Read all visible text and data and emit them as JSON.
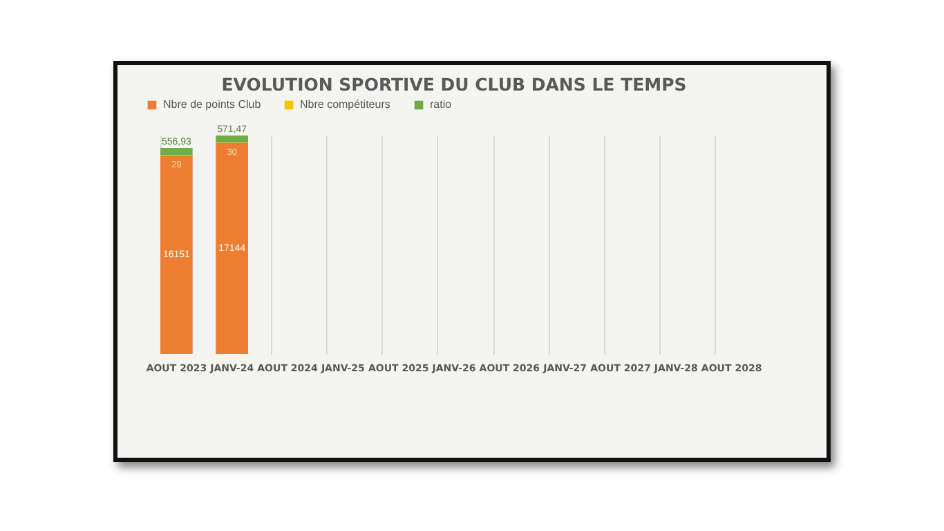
{
  "chart_data": {
    "type": "bar",
    "title": "EVOLUTION SPORTIVE DU CLUB DANS LE TEMPS",
    "categories": [
      "AOUT 2023",
      "JANV-24",
      "AOUT 2024",
      "JANV-25",
      "AOUT 2025",
      "JANV-26",
      "AOUT 2026",
      "JANV-27",
      "AOUT 2027",
      "JANV-28",
      "AOUT 2028"
    ],
    "stacked": true,
    "series": [
      {
        "name": "Nbre de points Club",
        "color": "#ed7d31",
        "values": [
          16151,
          17144,
          null,
          null,
          null,
          null,
          null,
          null,
          null,
          null,
          null
        ],
        "value_labels": [
          "16151",
          "17144",
          null,
          null,
          null,
          null,
          null,
          null,
          null,
          null,
          null
        ]
      },
      {
        "name": "Nbre compétiteurs",
        "color": "#ffc000",
        "values": [
          29,
          30,
          null,
          null,
          null,
          null,
          null,
          null,
          null,
          null,
          null
        ],
        "value_labels": [
          "29",
          "30",
          null,
          null,
          null,
          null,
          null,
          null,
          null,
          null,
          null
        ]
      },
      {
        "name": "ratio",
        "color": "#70ad47",
        "values": [
          556.93,
          571.47,
          null,
          null,
          null,
          null,
          null,
          null,
          null,
          null,
          null
        ],
        "value_labels": [
          "556,93",
          "571,47",
          null,
          null,
          null,
          null,
          null,
          null,
          null,
          null,
          null
        ]
      }
    ],
    "grid": "x",
    "legend": "top",
    "tick_labels": "x"
  }
}
